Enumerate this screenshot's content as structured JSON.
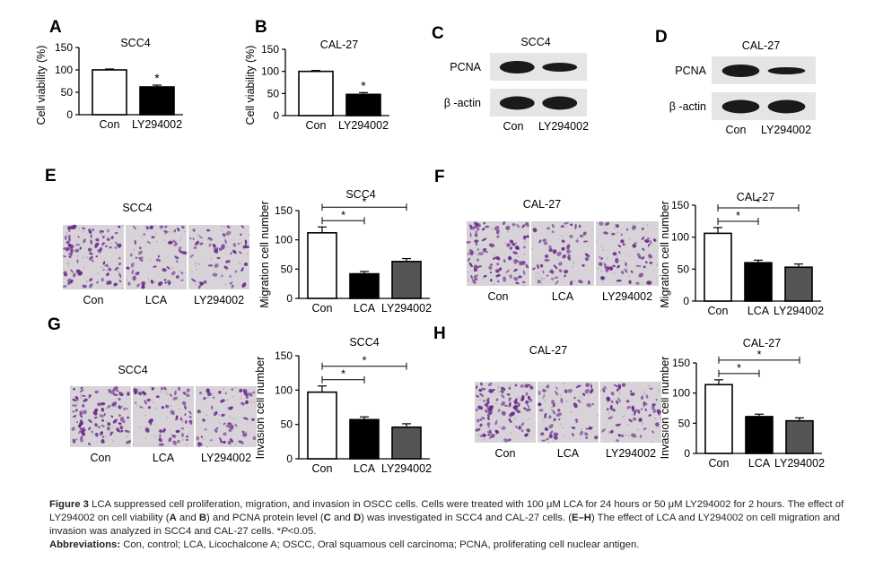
{
  "panels": {
    "A": {
      "label": "A",
      "title": "SCC4",
      "ylabel": "Cell viability (%)"
    },
    "B": {
      "label": "B",
      "title": "CAL-27",
      "ylabel": "Cell viability (%)"
    },
    "C": {
      "label": "C",
      "title": "SCC4",
      "rows": [
        "PCNA",
        "β -actin"
      ],
      "lanes": [
        "Con",
        "LY294002"
      ]
    },
    "D": {
      "label": "D",
      "title": "CAL-27",
      "rows": [
        "PCNA",
        "β -actin"
      ],
      "lanes": [
        "Con",
        "LY294002"
      ]
    },
    "E": {
      "label": "E",
      "image_title": "SCC4",
      "image_labels": [
        "Con",
        "LCA",
        "LY294002"
      ],
      "chart_title": "SCC4",
      "ylabel": "Migration cell number"
    },
    "F": {
      "label": "F",
      "image_title": "CAL-27",
      "image_labels": [
        "Con",
        "LCA",
        "LY294002"
      ],
      "chart_title": "CAL-27",
      "ylabel": "Migration cell number"
    },
    "G": {
      "label": "G",
      "image_title": "SCC4",
      "image_labels": [
        "Con",
        "LCA",
        "LY294002"
      ],
      "chart_title": "SCC4",
      "ylabel": "Invasion cell number"
    },
    "H": {
      "label": "H",
      "image_title": "CAL-27",
      "image_labels": [
        "Con",
        "LCA",
        "LY294002"
      ],
      "chart_title": "CAL-27",
      "ylabel": "Invasion cell number"
    }
  },
  "chart_data": [
    {
      "id": "A",
      "type": "bar",
      "title": "SCC4",
      "ylabel": "Cell viability (%)",
      "categories": [
        "Con",
        "LY294002"
      ],
      "values": [
        100,
        62
      ],
      "errors": [
        2,
        4
      ],
      "fills": [
        "#ffffff",
        "#000000"
      ],
      "ylim": [
        0,
        150
      ],
      "yticks": [
        0,
        50,
        100,
        150
      ],
      "significance": [
        {
          "bar": 1,
          "label": "*"
        }
      ]
    },
    {
      "id": "B",
      "type": "bar",
      "title": "CAL-27",
      "ylabel": "Cell viability (%)",
      "categories": [
        "Con",
        "LY294002"
      ],
      "values": [
        100,
        48
      ],
      "errors": [
        2,
        4
      ],
      "fills": [
        "#ffffff",
        "#000000"
      ],
      "ylim": [
        0,
        150
      ],
      "yticks": [
        0,
        50,
        100,
        150
      ],
      "significance": [
        {
          "bar": 1,
          "label": "*"
        }
      ]
    },
    {
      "id": "E",
      "type": "bar",
      "title": "SCC4",
      "ylabel": "Migration cell number",
      "categories": [
        "Con",
        "LCA",
        "LY294002"
      ],
      "values": [
        112,
        42,
        63
      ],
      "errors": [
        10,
        4,
        5
      ],
      "fills": [
        "#ffffff",
        "#000000",
        "#555555"
      ],
      "ylim": [
        0,
        150
      ],
      "yticks": [
        0,
        50,
        100,
        150
      ],
      "brackets": [
        {
          "from": 0,
          "to": 1,
          "label": "*"
        },
        {
          "from": 0,
          "to": 2,
          "label": "*"
        }
      ]
    },
    {
      "id": "F",
      "type": "bar",
      "title": "CAL-27",
      "ylabel": "Migration cell number",
      "categories": [
        "Con",
        "LCA",
        "LY294002"
      ],
      "values": [
        106,
        60,
        53
      ],
      "errors": [
        9,
        4,
        5
      ],
      "fills": [
        "#ffffff",
        "#000000",
        "#555555"
      ],
      "ylim": [
        0,
        150
      ],
      "yticks": [
        0,
        50,
        100,
        150
      ],
      "brackets": [
        {
          "from": 0,
          "to": 1,
          "label": "*"
        },
        {
          "from": 0,
          "to": 2,
          "label": "*"
        }
      ]
    },
    {
      "id": "G",
      "type": "bar",
      "title": "SCC4",
      "ylabel": "Invasion cell number",
      "categories": [
        "Con",
        "LCA",
        "LY294002"
      ],
      "values": [
        97,
        57,
        46
      ],
      "errors": [
        9,
        4,
        5
      ],
      "fills": [
        "#ffffff",
        "#000000",
        "#555555"
      ],
      "ylim": [
        0,
        150
      ],
      "yticks": [
        0,
        50,
        100,
        150
      ],
      "brackets": [
        {
          "from": 0,
          "to": 1,
          "label": "*"
        },
        {
          "from": 0,
          "to": 2,
          "label": "*"
        }
      ]
    },
    {
      "id": "H",
      "type": "bar",
      "title": "CAL-27",
      "ylabel": "Invasion cell number",
      "categories": [
        "Con",
        "LCA",
        "LY294002"
      ],
      "values": [
        114,
        61,
        54
      ],
      "errors": [
        8,
        4,
        5
      ],
      "fills": [
        "#ffffff",
        "#000000",
        "#555555"
      ],
      "ylim": [
        0,
        150
      ],
      "yticks": [
        0,
        50,
        100,
        150
      ],
      "brackets": [
        {
          "from": 0,
          "to": 1,
          "label": "*"
        },
        {
          "from": 0,
          "to": 2,
          "label": "*"
        }
      ]
    }
  ],
  "caption": {
    "fig_label": "Figure 3",
    "text1": " LCA suppressed cell proliferation, migration, and invasion in OSCC cells. Cells were treated with 100 μM LCA for 24 hours or 50 μM LY294002 for 2 hours. The effect of LY294002 on cell viability (",
    "ref_a": "A",
    "and1": " and ",
    "ref_b": "B",
    "text2": ") and PCNA protein level (",
    "ref_c": "C",
    "and2": " and ",
    "ref_d": "D",
    "text3": ") was investigated in SCC4 and CAL-27 cells. (",
    "ref_eh": "E–H",
    "text4": ") The effect of LCA and LY294002 on cell migration and invasion was analyzed in SCC4 and CAL-27 cells. *",
    "p_italic": "P",
    "text5": "<0.05.",
    "abbrev_label": "Abbreviations:",
    "abbrev_text": " Con, control; LCA, Licochalcone A; OSCC, Oral squamous cell carcinoma; PCNA, proliferating cell nuclear antigen."
  },
  "colors": {
    "cell_stain": "#6a2c8a",
    "micrograph_bg": "#d8d3d9",
    "blot_bg": "#e5e5e5",
    "band": "#1a1a1a"
  }
}
